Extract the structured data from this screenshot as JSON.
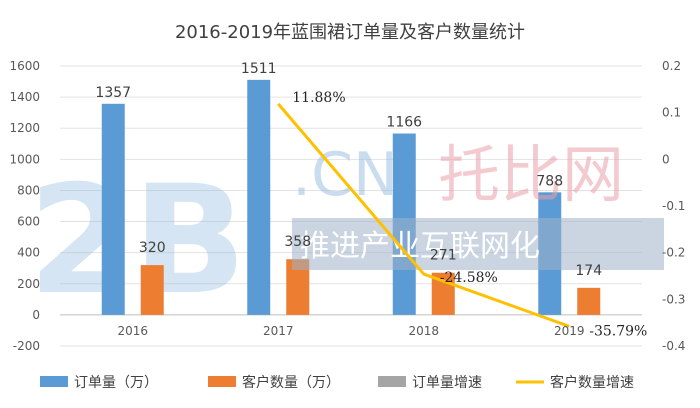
{
  "chart_data": {
    "type": "bar",
    "title": "2016-2019年蓝围裙订单量及客户数量统计",
    "categories": [
      "2016",
      "2017",
      "2018",
      "2019"
    ],
    "series": [
      {
        "name": "订单量（万）",
        "kind": "bar",
        "axis": "left",
        "color": "#5b9bd5",
        "values": [
          1357,
          1511,
          1166,
          788
        ]
      },
      {
        "name": "客户数量（万）",
        "kind": "bar",
        "axis": "left",
        "color": "#ed7d31",
        "values": [
          320,
          358,
          271,
          174
        ]
      },
      {
        "name": "订单量增速",
        "kind": "bar",
        "axis": "right",
        "color": "#a5a5a5",
        "values": [
          null,
          null,
          null,
          null
        ]
      },
      {
        "name": "客户数量增速",
        "kind": "line",
        "axis": "right",
        "color": "#ffc000",
        "values": [
          null,
          0.1188,
          -0.2458,
          -0.3579
        ]
      }
    ],
    "data_labels": {
      "orders": [
        "1357",
        "1511",
        "1166",
        "788"
      ],
      "customers": [
        "320",
        "358",
        "271",
        "174"
      ],
      "customer_growth": [
        "11.88%",
        "-24.58%",
        "-35.79%"
      ]
    },
    "y_left": {
      "min": -200,
      "max": 1600,
      "step": 200,
      "ticks": [
        "1600",
        "1400",
        "1200",
        "1000",
        "800",
        "600",
        "400",
        "200",
        "0",
        "-200"
      ]
    },
    "y_right": {
      "min": -0.4,
      "max": 0.2,
      "step": 0.1,
      "ticks": [
        "0.2",
        "0.1",
        "0",
        "-0.1",
        "-0.2",
        "-0.3",
        "-0.4"
      ]
    },
    "grid": true,
    "legend_position": "bottom"
  },
  "watermark": {
    "logo_big": "2B",
    "logo_cn": ".CN",
    "logo_brand": "托比网",
    "slogan": "推进产业互联网化"
  }
}
